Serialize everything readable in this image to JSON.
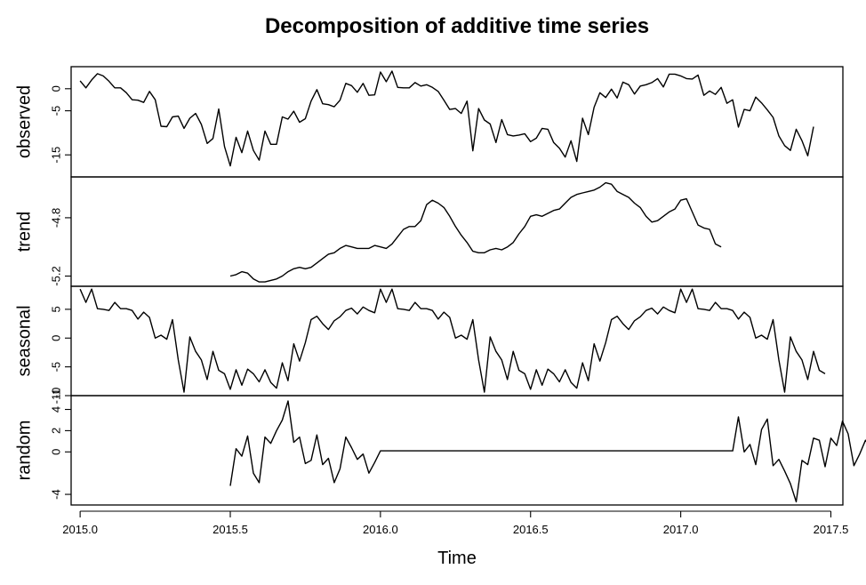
{
  "chart_data": {
    "type": "line",
    "title": "Decomposition of additive time series",
    "xlabel": "Time",
    "xlim": [
      2014.97,
      2017.54
    ],
    "x_ticks": [
      2015.0,
      2015.5,
      2016.0,
      2016.5,
      2017.0,
      2017.5
    ],
    "x_tick_labels": [
      "2015.0",
      "2015.5",
      "2016.0",
      "2016.5",
      "2017.0",
      "2017.5"
    ],
    "panels": [
      {
        "name": "observed",
        "ylim": [
          -20,
          5
        ],
        "y_ticks": [
          0,
          -5,
          -15
        ],
        "y_tick_labels": [
          "0",
          "-5",
          "-15"
        ],
        "x_start": 2015.0,
        "x_step": 0.01923,
        "values": [
          1.8,
          0.2,
          2.0,
          3.4,
          2.9,
          1.7,
          0.2,
          0.2,
          -0.9,
          -2.5,
          -2.6,
          -3.1,
          -0.6,
          -2.5,
          -8.5,
          -8.6,
          -6.4,
          -6.2,
          -9.0,
          -6.7,
          -5.6,
          -8.1,
          -12.4,
          -11.3,
          -4.6,
          -13.1,
          -17.5,
          -11.0,
          -14.5,
          -9.6,
          -14.0,
          -16.2,
          -9.6,
          -12.6,
          -12.6,
          -6.4,
          -6.9,
          -5.1,
          -7.6,
          -6.8,
          -2.8,
          -0.2,
          -3.4,
          -3.6,
          -4.1,
          -2.6,
          1.2,
          0.7,
          -0.8,
          1.2,
          -1.5,
          -1.4,
          3.8,
          1.6,
          4.0,
          0.3,
          0.2,
          0.2,
          1.4,
          0.6,
          0.9,
          0.3,
          -0.6,
          -2.6,
          -4.7,
          -4.5,
          -5.6,
          -2.8,
          -14.1,
          -4.5,
          -7.1,
          -8.0,
          -12.2,
          -7.0,
          -10.4,
          -10.7,
          -10.5,
          -10.2,
          -12.0,
          -11.2,
          -9.0,
          -9.2,
          -12.2,
          -13.5,
          -15.5,
          -11.8,
          -16.5,
          -6.7,
          -10.4,
          -4.2,
          -0.9,
          -2.0,
          -0.1,
          -2.1,
          1.5,
          0.9,
          -1.2,
          0.6,
          0.9,
          1.4,
          2.3,
          0.4,
          3.3,
          3.3,
          2.9,
          2.3,
          2.2,
          3.1,
          -1.5,
          -0.5,
          -1.3,
          0.3,
          -3.3,
          -2.5,
          -8.7,
          -4.7,
          -5.0,
          -1.9,
          -3.2,
          -4.8,
          -6.5,
          -10.7,
          -12.9,
          -14.0,
          -9.2,
          -11.8,
          -15.2,
          -8.6
        ]
      },
      {
        "name": "trend",
        "ylim": [
          -5.27,
          -4.52
        ],
        "y_ticks": [
          -4.8,
          -5.2
        ],
        "y_tick_labels": [
          "-4.8",
          "-5.2"
        ],
        "x_start": 2015.5,
        "x_step": 0.01923,
        "values": [
          -5.2,
          -5.19,
          -5.17,
          -5.18,
          -5.22,
          -5.24,
          -5.24,
          -5.23,
          -5.22,
          -5.2,
          -5.17,
          -5.15,
          -5.14,
          -5.15,
          -5.14,
          -5.11,
          -5.08,
          -5.05,
          -5.04,
          -5.01,
          -4.99,
          -5.0,
          -5.01,
          -5.01,
          -5.01,
          -4.99,
          -5.0,
          -5.01,
          -4.98,
          -4.93,
          -4.88,
          -4.86,
          -4.86,
          -4.82,
          -4.71,
          -4.68,
          -4.7,
          -4.73,
          -4.79,
          -4.86,
          -4.92,
          -4.97,
          -5.03,
          -5.04,
          -5.04,
          -5.02,
          -5.01,
          -5.02,
          -5.0,
          -4.97,
          -4.91,
          -4.86,
          -4.79,
          -4.78,
          -4.79,
          -4.77,
          -4.75,
          -4.74,
          -4.7,
          -4.66,
          -4.64,
          -4.63,
          -4.62,
          -4.61,
          -4.59,
          -4.56,
          -4.57,
          -4.62,
          -4.64,
          -4.66,
          -4.7,
          -4.73,
          -4.79,
          -4.83,
          -4.82,
          -4.79,
          -4.76,
          -4.74,
          -4.68,
          -4.67,
          -4.76,
          -4.85,
          -4.87,
          -4.88,
          -4.98,
          -5.0
        ]
      },
      {
        "name": "seasonal",
        "ylim": [
          -10,
          9
        ],
        "y_ticks": [
          5,
          0,
          -5,
          -10
        ],
        "y_tick_labels": [
          "5",
          "0",
          "-5",
          "-10"
        ],
        "x_start": 2015.0,
        "x_step": 0.01923,
        "values": [
          8.5,
          6.2,
          8.5,
          5.1,
          5.0,
          4.8,
          6.2,
          5.1,
          5.1,
          4.8,
          3.3,
          4.5,
          3.6,
          0.0,
          0.5,
          -0.2,
          3.2,
          -3.8,
          -9.4,
          0.2,
          -2.3,
          -3.8,
          -7.2,
          -2.3,
          -5.6,
          -6.2,
          -8.9,
          -5.5,
          -8.2,
          -5.4,
          -6.2,
          -7.6,
          -5.5,
          -7.7,
          -8.7,
          -4.3,
          -7.4,
          -1.0,
          -4.0,
          -0.8,
          3.2,
          3.8,
          2.5,
          1.5,
          3.0,
          3.7,
          4.8,
          5.2,
          4.2,
          5.4,
          4.8,
          4.4,
          8.5,
          6.2,
          8.5,
          5.1,
          5.0,
          4.8,
          6.2,
          5.1,
          5.1,
          4.8,
          3.3,
          4.5,
          3.6,
          0.0,
          0.5,
          -0.2,
          3.2,
          -3.8,
          -9.4,
          0.2,
          -2.3,
          -3.8,
          -7.2,
          -2.3,
          -5.6,
          -6.2,
          -8.9,
          -5.5,
          -8.2,
          -5.4,
          -6.2,
          -7.6,
          -5.5,
          -7.7,
          -8.7,
          -4.3,
          -7.4,
          -1.0,
          -4.0,
          -0.8,
          3.2,
          3.8,
          2.5,
          1.5,
          3.0,
          3.7,
          4.8,
          5.2,
          4.2,
          5.4,
          4.8,
          4.4,
          8.5,
          6.2,
          8.5,
          5.1,
          5.0,
          4.8,
          6.2,
          5.1,
          5.1,
          4.8,
          3.3,
          4.5,
          3.6,
          0.0,
          0.5,
          -0.2,
          3.2,
          -3.8,
          -9.4,
          0.2,
          -2.3,
          -3.8,
          -7.2,
          -2.3,
          -5.6,
          -6.2
        ]
      },
      {
        "name": "random",
        "ylim": [
          -5.0,
          5.3
        ],
        "y_ticks": [
          4.0,
          2,
          0,
          -4
        ],
        "y_tick_labels": [
          "4",
          "2",
          "0",
          "-4"
        ],
        "y_tick_labels_extra": [
          {
            "value": 4.0,
            "label": "-1",
            "offset": 1
          }
        ],
        "x_start": 2015.5,
        "x_step": 0.01923,
        "values": [
          -3.2,
          0.3,
          -0.4,
          1.5,
          -2.0,
          -2.9,
          1.4,
          0.8,
          2.0,
          3.0,
          4.8,
          0.9,
          1.4,
          -1.1,
          -0.8,
          1.6,
          -1.2,
          -0.6,
          -2.9,
          -1.6,
          1.4,
          0.4,
          -0.7,
          -0.2,
          -2.0,
          -1.0,
          0.1,
          0.1,
          0.1,
          0.1,
          0.1,
          0.1,
          0.1,
          0.1,
          0.1,
          0.1,
          0.1,
          0.1,
          0.1,
          0.1,
          0.1,
          0.1,
          0.1,
          0.1,
          0.1,
          0.1,
          0.1,
          0.1,
          0.1,
          0.1,
          0.1,
          0.1,
          0.1,
          0.1,
          0.1,
          0.1,
          0.1,
          0.1,
          0.1,
          0.1,
          0.1,
          0.1,
          0.1,
          0.1,
          0.1,
          0.1,
          0.1,
          0.1,
          0.1,
          0.1,
          0.1,
          0.1,
          0.1,
          0.1,
          0.1,
          0.1,
          0.1,
          0.1,
          0.1,
          0.1,
          0.1,
          0.1,
          0.1,
          0.1,
          0.1,
          0.1,
          0.1,
          0.1,
          3.3,
          0.0,
          0.7,
          -1.2,
          2.1,
          3.1,
          -1.3,
          -0.7,
          -1.8,
          -3.0,
          -4.7,
          -0.8,
          -1.2,
          1.3,
          1.1,
          -1.4,
          1.3,
          0.6,
          2.9,
          1.7,
          -1.3,
          -0.2,
          1.1,
          0.3,
          2.2,
          1.2
        ]
      }
    ],
    "grid": false,
    "legend": "none"
  }
}
